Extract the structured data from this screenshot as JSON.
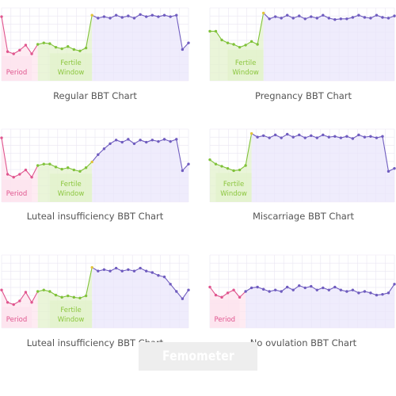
{
  "colors": {
    "purple": "#6f5cbf",
    "pink": "#e0558e",
    "green": "#80c23a",
    "yellow": "#e3c43a",
    "grid": "#e9e6f2",
    "purple_fill": "#eae6fb",
    "pink_fill": "#fde4ee",
    "green_fill": "#e3f2cc",
    "period_text": "#e0558e",
    "fertile_text": "#8cc63f"
  },
  "brand": {
    "text": "Femometer"
  },
  "chart_data": [
    {
      "type": "line",
      "title": "Regular BBT Chart",
      "x": [
        0,
        1,
        2,
        3,
        4,
        5,
        6,
        7,
        8,
        9,
        10,
        11,
        12,
        13,
        14,
        15,
        16,
        17,
        18,
        19,
        20,
        21,
        22,
        23,
        24,
        25,
        26,
        27,
        28,
        29,
        30,
        31
      ],
      "y": [
        0.88,
        0.4,
        0.37,
        0.42,
        0.49,
        0.37,
        0.5,
        0.52,
        0.51,
        0.46,
        0.44,
        0.47,
        0.43,
        0.41,
        0.45,
        0.9,
        0.86,
        0.88,
        0.86,
        0.9,
        0.87,
        0.89,
        0.86,
        0.91,
        0.88,
        0.9,
        0.88,
        0.9,
        0.88,
        0.9,
        0.43,
        0.52
      ],
      "segments": [
        {
          "from": 0,
          "to": 6,
          "color": "pink"
        },
        {
          "from": 6,
          "to": 15,
          "color": "green"
        },
        {
          "from": 15,
          "to": 31,
          "color": "purple"
        }
      ],
      "bands": [
        {
          "label": "Period",
          "from": 0,
          "to": 5,
          "color": "pink"
        },
        {
          "label": "Fertile Window",
          "from": 8,
          "to": 15,
          "color": "green"
        }
      ],
      "ylim": [
        0,
        1
      ],
      "grid": true
    },
    {
      "type": "line",
      "title": "Pregnancy BBT Chart",
      "x": [
        0,
        1,
        2,
        3,
        4,
        5,
        6,
        7,
        8,
        9,
        10,
        11,
        12,
        13,
        14,
        15,
        16,
        17,
        18,
        19,
        20,
        21,
        22,
        23,
        24,
        25,
        26,
        27,
        28,
        29,
        30,
        31
      ],
      "y": [
        0.68,
        0.68,
        0.56,
        0.52,
        0.5,
        0.46,
        0.49,
        0.54,
        0.5,
        0.93,
        0.85,
        0.88,
        0.86,
        0.9,
        0.86,
        0.89,
        0.85,
        0.88,
        0.86,
        0.9,
        0.86,
        0.84,
        0.85,
        0.85,
        0.87,
        0.9,
        0.87,
        0.86,
        0.9,
        0.87,
        0.86,
        0.89
      ],
      "segments": [
        {
          "from": 0,
          "to": 9,
          "color": "green"
        },
        {
          "from": 9,
          "to": 31,
          "color": "purple"
        }
      ],
      "bands": [
        {
          "label": "Fertile Window",
          "from": 3,
          "to": 9,
          "color": "green"
        }
      ],
      "ylim": [
        0,
        1
      ],
      "grid": true
    },
    {
      "type": "line",
      "title": "Luteal insufficiency BBT Chart",
      "x": [
        0,
        1,
        2,
        3,
        4,
        5,
        6,
        7,
        8,
        9,
        10,
        11,
        12,
        13,
        14,
        15,
        16,
        17,
        18,
        19,
        20,
        21,
        22,
        23,
        24,
        25,
        26,
        27,
        28,
        29,
        30,
        31
      ],
      "y": [
        0.88,
        0.38,
        0.34,
        0.38,
        0.44,
        0.34,
        0.5,
        0.52,
        0.52,
        0.48,
        0.45,
        0.47,
        0.44,
        0.42,
        0.47,
        0.55,
        0.65,
        0.73,
        0.8,
        0.85,
        0.82,
        0.86,
        0.8,
        0.85,
        0.82,
        0.85,
        0.83,
        0.86,
        0.83,
        0.86,
        0.43,
        0.52
      ],
      "segments": [
        {
          "from": 0,
          "to": 6,
          "color": "pink"
        },
        {
          "from": 6,
          "to": 15,
          "color": "green"
        },
        {
          "from": 15,
          "to": 31,
          "color": "purple"
        }
      ],
      "bands": [
        {
          "label": "Period",
          "from": 0,
          "to": 5,
          "color": "pink"
        },
        {
          "label": "Fertile Window",
          "from": 8,
          "to": 15,
          "color": "green"
        }
      ],
      "ylim": [
        0,
        1
      ],
      "grid": true
    },
    {
      "type": "line",
      "title": "Miscarriage BBT Chart",
      "x": [
        0,
        1,
        2,
        3,
        4,
        5,
        6,
        7,
        8,
        9,
        10,
        11,
        12,
        13,
        14,
        15,
        16,
        17,
        18,
        19,
        20,
        21,
        22,
        23,
        24,
        25,
        26,
        27,
        28,
        29,
        30,
        31
      ],
      "y": [
        0.58,
        0.52,
        0.49,
        0.46,
        0.43,
        0.44,
        0.5,
        0.94,
        0.89,
        0.91,
        0.88,
        0.92,
        0.88,
        0.93,
        0.89,
        0.92,
        0.88,
        0.91,
        0.88,
        0.92,
        0.89,
        0.9,
        0.88,
        0.9,
        0.87,
        0.92,
        0.89,
        0.9,
        0.88,
        0.9,
        0.42,
        0.46
      ],
      "segments": [
        {
          "from": 0,
          "to": 7,
          "color": "green"
        },
        {
          "from": 7,
          "to": 31,
          "color": "purple"
        }
      ],
      "bands": [
        {
          "label": "Fertile Window",
          "from": 1,
          "to": 7,
          "color": "green"
        }
      ],
      "ylim": [
        0,
        1
      ],
      "grid": true
    },
    {
      "type": "line",
      "title": "Luteal insufficiency BBT Chart",
      "x": [
        0,
        1,
        2,
        3,
        4,
        5,
        6,
        7,
        8,
        9,
        10,
        11,
        12,
        13,
        14,
        15,
        16,
        17,
        18,
        19,
        20,
        21,
        22,
        23,
        24,
        25,
        26,
        27,
        28,
        29,
        30,
        31
      ],
      "y": [
        0.52,
        0.35,
        0.32,
        0.37,
        0.49,
        0.35,
        0.5,
        0.52,
        0.5,
        0.45,
        0.42,
        0.44,
        0.42,
        0.41,
        0.44,
        0.83,
        0.78,
        0.8,
        0.78,
        0.82,
        0.78,
        0.8,
        0.78,
        0.82,
        0.78,
        0.76,
        0.72,
        0.7,
        0.6,
        0.5,
        0.4,
        0.52
      ],
      "segments": [
        {
          "from": 0,
          "to": 6,
          "color": "pink"
        },
        {
          "from": 6,
          "to": 15,
          "color": "green"
        },
        {
          "from": 15,
          "to": 31,
          "color": "purple"
        }
      ],
      "bands": [
        {
          "label": "Period",
          "from": 0,
          "to": 5,
          "color": "pink"
        },
        {
          "label": "Fertile Window",
          "from": 8,
          "to": 15,
          "color": "green"
        }
      ],
      "ylim": [
        0,
        1
      ],
      "grid": true
    },
    {
      "type": "line",
      "title": "No ovulation  BBT Chart",
      "x": [
        0,
        1,
        2,
        3,
        4,
        5,
        6,
        7,
        8,
        9,
        10,
        11,
        12,
        13,
        14,
        15,
        16,
        17,
        18,
        19,
        20,
        21,
        22,
        23,
        24,
        25,
        26,
        27,
        28,
        29,
        30,
        31
      ],
      "y": [
        0.56,
        0.45,
        0.42,
        0.48,
        0.52,
        0.42,
        0.5,
        0.55,
        0.56,
        0.53,
        0.5,
        0.52,
        0.5,
        0.56,
        0.52,
        0.58,
        0.55,
        0.57,
        0.52,
        0.55,
        0.52,
        0.56,
        0.52,
        0.5,
        0.52,
        0.48,
        0.5,
        0.48,
        0.45,
        0.46,
        0.48,
        0.6
      ],
      "segments": [
        {
          "from": 0,
          "to": 6,
          "color": "pink"
        },
        {
          "from": 6,
          "to": 31,
          "color": "purple"
        }
      ],
      "bands": [
        {
          "label": "Period",
          "from": 0,
          "to": 5,
          "color": "pink"
        }
      ],
      "ylim": [
        0,
        1
      ],
      "grid": true
    }
  ]
}
